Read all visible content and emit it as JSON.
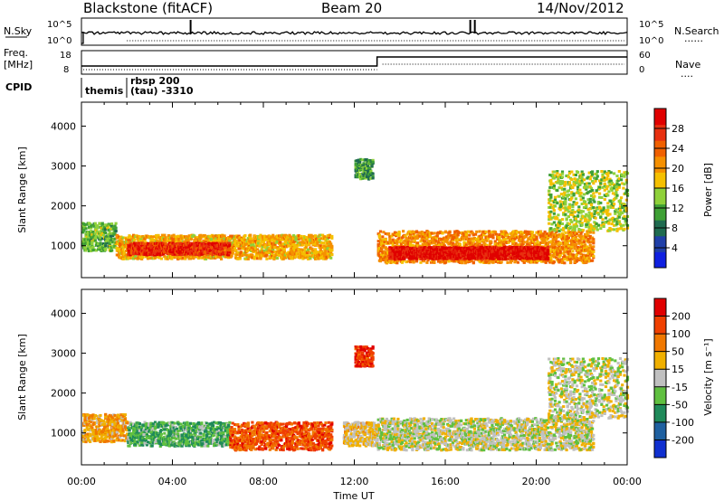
{
  "header": {
    "station": "Blackstone (fitACF)",
    "beam": "Beam 20",
    "date": "14/Nov/2012"
  },
  "strip_labels": {
    "nsky": "N.Sky",
    "freq_line1": "Freq.",
    "freq_line2": "[MHz]",
    "cpid": "CPID",
    "nsearch": "N.Search",
    "nave": "Nave",
    "nsearch_dots": "......",
    "nave_dots": "....",
    "nsky_ticks": [
      "10^5",
      "10^0"
    ],
    "nsky_right_ticks": [
      "10^5",
      "10^0"
    ],
    "freq_ticks": [
      "18",
      "8"
    ],
    "nave_ticks": [
      "60",
      "0"
    ]
  },
  "cpid_labels": {
    "themis": "themis",
    "rbsp_line1": "rbsp 200",
    "rbsp_line2": "(tau) -3310"
  },
  "axes": {
    "ylabel": "Slant Range [km]",
    "xlabel": "Time UT",
    "y_ticks": [
      "1000",
      "2000",
      "3000",
      "4000"
    ],
    "x_ticks": [
      "00:00",
      "04:00",
      "08:00",
      "12:00",
      "16:00",
      "20:00",
      "00:00"
    ]
  },
  "colorbars": {
    "power": {
      "label": "Power [dB]",
      "ticks": [
        "4",
        "8",
        "12",
        "16",
        "20",
        "24",
        "28"
      ],
      "colors": [
        "#0f20e0",
        "#1f3fa8",
        "#1f6b50",
        "#3ea035",
        "#8fd13a",
        "#f5c000",
        "#f59000",
        "#f06000",
        "#e83010",
        "#e00000"
      ]
    },
    "velocity": {
      "label": "Velocity [m s⁻¹]",
      "ticks": [
        "200",
        "100",
        "50",
        "15",
        "-15",
        "-50",
        "-100",
        "-200"
      ],
      "colors": [
        "#1030d0",
        "#1f60a0",
        "#1f8a5a",
        "#60c040",
        "#c0c0c0",
        "#f0b000",
        "#f07800",
        "#f04000",
        "#e00000"
      ]
    }
  },
  "chart_data": {
    "type": "heatmap",
    "title": "Blackstone (fitACF)",
    "subtitle": "Beam 20",
    "xlabel": "Time UT",
    "ylabel": "Slant Range [km]",
    "xlim_hours": [
      0,
      24
    ],
    "ylim_km": [
      200,
      4600
    ],
    "panels": [
      {
        "name": "Power",
        "units": "dB",
        "scale": [
          0,
          30
        ],
        "echo_bands": [
          {
            "t_start": 0.0,
            "t_end": 1.5,
            "range_low_km": 900,
            "range_high_km": 1600,
            "value": 12
          },
          {
            "t_start": 1.5,
            "t_end": 11.0,
            "range_low_km": 700,
            "range_high_km": 1300,
            "value": 18
          },
          {
            "t_start": 2.0,
            "t_end": 6.5,
            "range_low_km": 800,
            "range_high_km": 1100,
            "value": 26
          },
          {
            "t_start": 12.0,
            "t_end": 12.8,
            "range_low_km": 2700,
            "range_high_km": 3200,
            "value": 10
          },
          {
            "t_start": 13.0,
            "t_end": 22.5,
            "range_low_km": 600,
            "range_high_km": 1400,
            "value": 20
          },
          {
            "t_start": 13.5,
            "t_end": 20.5,
            "range_low_km": 700,
            "range_high_km": 1000,
            "value": 28
          },
          {
            "t_start": 20.5,
            "t_end": 24.0,
            "range_low_km": 1400,
            "range_high_km": 2900,
            "value": 14
          }
        ]
      },
      {
        "name": "Velocity",
        "units": "m s-1",
        "scale": [
          -200,
          200
        ],
        "echo_bands": [
          {
            "t_start": 0.0,
            "t_end": 2.0,
            "range_low_km": 800,
            "range_high_km": 1500,
            "value": 60
          },
          {
            "t_start": 2.0,
            "t_end": 6.5,
            "range_low_km": 700,
            "range_high_km": 1300,
            "value": -60
          },
          {
            "t_start": 6.5,
            "t_end": 11.0,
            "range_low_km": 600,
            "range_high_km": 1300,
            "value": 120
          },
          {
            "t_start": 12.0,
            "t_end": 12.8,
            "range_low_km": 2700,
            "range_high_km": 3200,
            "value": 150
          },
          {
            "t_start": 11.5,
            "t_end": 13.0,
            "range_low_km": 700,
            "range_high_km": 1300,
            "value": 30
          },
          {
            "t_start": 13.0,
            "t_end": 22.5,
            "range_low_km": 600,
            "range_high_km": 1400,
            "value": 0
          },
          {
            "t_start": 20.5,
            "t_end": 24.0,
            "range_low_km": 1400,
            "range_high_km": 2900,
            "value": 0
          }
        ]
      }
    ],
    "strips": {
      "freq_change_hour": 13.0,
      "cpid_change_hour": 2.0,
      "nsky_spikes_hours": [
        4.8,
        17.1,
        17.3
      ]
    }
  }
}
